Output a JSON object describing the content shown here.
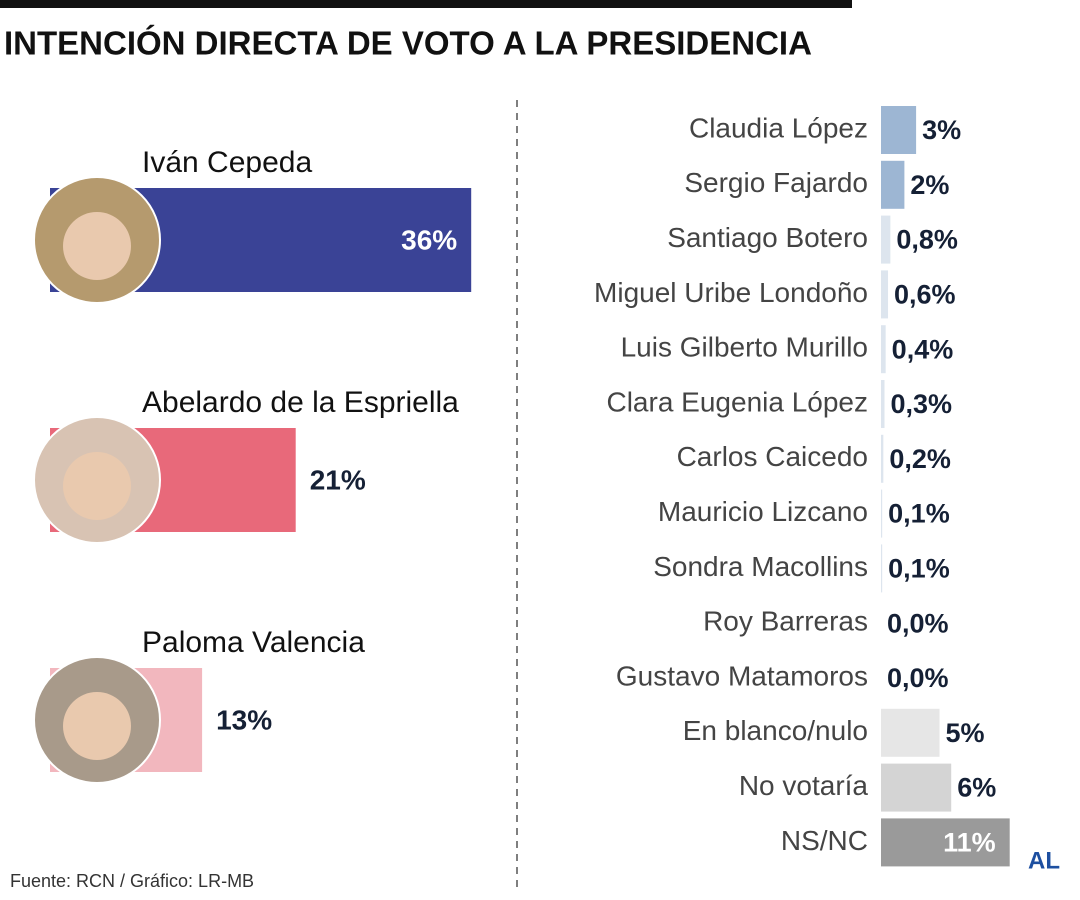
{
  "title": "INTENCIÓN DIRECTA DE VOTO A LA PRESIDENCIA",
  "source": "Fuente: RCN / Gráfico: LR-MB",
  "logo": "AL",
  "chart_data": [
    {
      "type": "bar",
      "categories": [
        "Iván Cepeda",
        "Abelardo de la Espriella",
        "Paloma Valencia"
      ],
      "values": [
        36,
        21,
        13
      ],
      "value_labels": [
        "36%",
        "21%",
        "13%"
      ],
      "colors": [
        "#3a4396",
        "#e8697a",
        "#f2b7be"
      ]
    },
    {
      "type": "bar",
      "categories": [
        "Claudia López",
        "Sergio Fajardo",
        "Santiago Botero",
        "Miguel Uribe Londoño",
        "Luis Gilberto Murillo",
        "Clara Eugenia López",
        "Carlos Caicedo",
        "Mauricio Lizcano",
        "Sondra Macollins",
        "Roy Barreras",
        "Gustavo Matamoros",
        "En blanco/nulo",
        "No votaría",
        "NS/NC"
      ],
      "values": [
        3,
        2,
        0.8,
        0.6,
        0.4,
        0.3,
        0.2,
        0.1,
        0.1,
        0.0,
        0.0,
        5,
        6,
        11
      ],
      "value_labels": [
        "3%",
        "2%",
        "0,8%",
        "0,6%",
        "0,4%",
        "0,3%",
        "0,2%",
        "0,1%",
        "0,1%",
        "0,0%",
        "0,0%",
        "5%",
        "6%",
        "11%"
      ],
      "colors": [
        "#9db6d3",
        "#9db6d3",
        "#dde5ee",
        "#dde5ee",
        "#dde5ee",
        "#dde5ee",
        "#dde5ee",
        "#dde5ee",
        "#dde5ee",
        "#dde5ee",
        "#dde5ee",
        "#e6e6e6",
        "#d4d4d4",
        "#9a9a9a"
      ]
    }
  ]
}
